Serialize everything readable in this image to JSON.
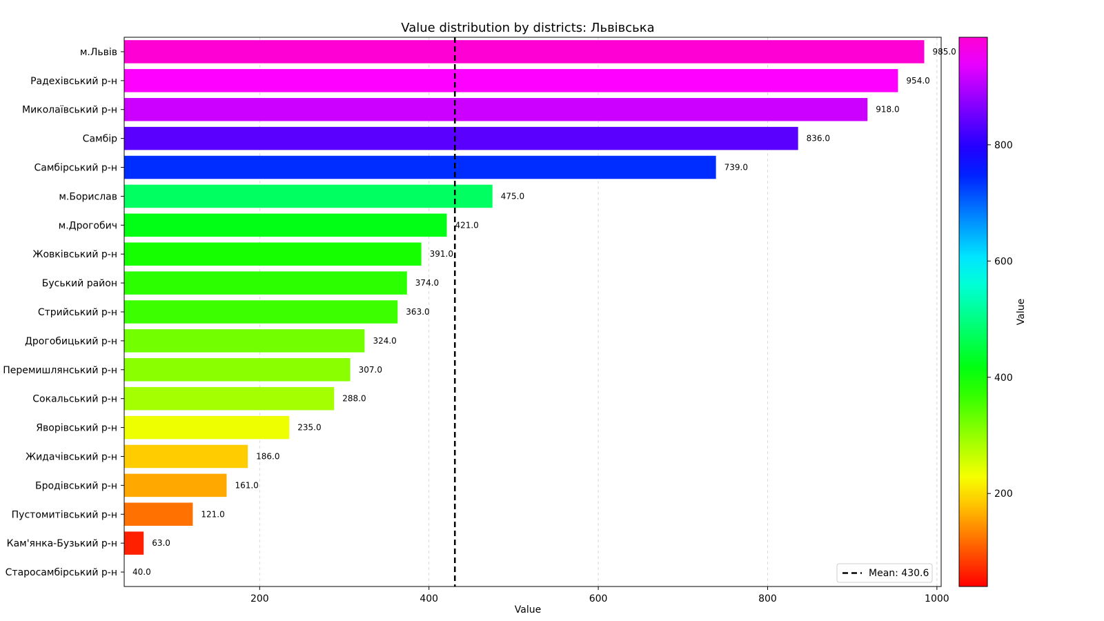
{
  "chart_data": {
    "type": "bar",
    "orientation": "horizontal",
    "title": "Value distribution by districts: Львівська",
    "xlabel": "Value",
    "ylabel": "",
    "xlim": [
      40,
      1005
    ],
    "xticks": [
      200,
      400,
      600,
      800,
      1000
    ],
    "grid": "x-dashed",
    "categories": [
      "м.Львів",
      "Радехівський р-н",
      "Миколаївський р-н",
      "Самбір",
      "Самбірський р-н",
      "м.Борислав",
      "м.Дрогобич",
      "Жовківський р-н",
      "Буський район",
      "Стрийський р-н",
      "Дрогобицький р-н",
      "Перемишлянський р-н",
      "Сокальський р-н",
      "Яворівський р-н",
      "Жидачівський р-н",
      "Бродівський р-н",
      "Пустомитівський р-н",
      "Кам'янка-Бузький р-н",
      "Старосамбірський р-н"
    ],
    "values": [
      985,
      954,
      918,
      836,
      739,
      475,
      421,
      391,
      374,
      363,
      324,
      307,
      288,
      235,
      186,
      161,
      121,
      63,
      40
    ],
    "value_labels": [
      "985.0",
      "954.0",
      "918.0",
      "836.0",
      "739.0",
      "475.0",
      "421.0",
      "391.0",
      "374.0",
      "363.0",
      "324.0",
      "307.0",
      "288.0",
      "235.0",
      "186.0",
      "161.0",
      "121.0",
      "63.0",
      "40.0"
    ],
    "mean": 430.6,
    "legend": {
      "label": "Mean: 430.6",
      "placement": "lower-right"
    },
    "colorbar": {
      "label": "Value",
      "colormap": "gist_rainbow",
      "range": [
        40,
        985
      ],
      "ticks": [
        200,
        400,
        600,
        800
      ]
    }
  }
}
